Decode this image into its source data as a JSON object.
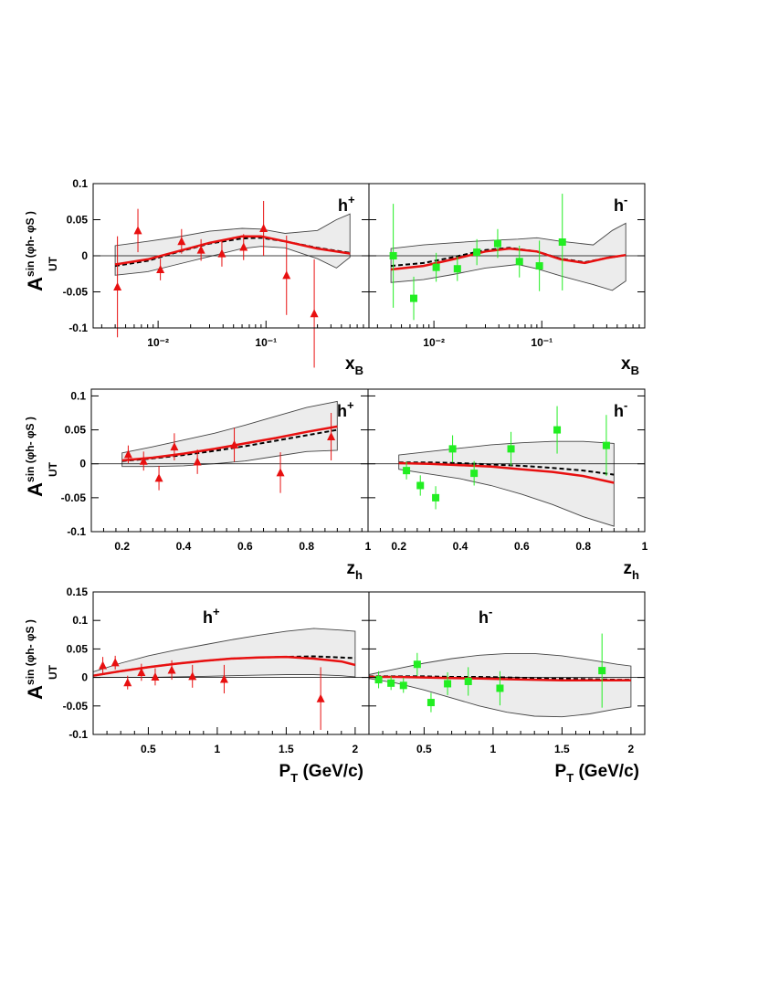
{
  "figure": {
    "ylabel": {
      "main": "A",
      "sup": "sin (φh- φS )",
      "sub": "UT"
    }
  },
  "chart_data": [
    {
      "type": "scatter",
      "row": "xB",
      "hadron": "h+",
      "xlabel": "xB",
      "xscale": "log",
      "xlim": [
        0.0025,
        0.9
      ],
      "ylim": [
        -0.1,
        0.1
      ],
      "yticks": [
        -0.1,
        -0.05,
        0,
        0.05,
        0.1
      ],
      "ytick_labels": [
        "-0.1",
        "-0.05",
        "0",
        "0.05",
        "0.1"
      ],
      "xticks": [
        0.01,
        0.1
      ],
      "xtick_labels": [
        "10⁻²",
        "10⁻¹"
      ],
      "series": [
        {
          "marker": "triangle",
          "color": "#e81010",
          "x": [
            0.0042,
            0.0065,
            0.0105,
            0.0165,
            0.025,
            0.039,
            0.062,
            0.095,
            0.155,
            0.28
          ],
          "y": [
            -0.043,
            0.035,
            -0.019,
            0.02,
            0.008,
            0.003,
            0.012,
            0.038,
            -0.027,
            -0.08
          ],
          "err": [
            0.07,
            0.03,
            0.015,
            0.017,
            0.015,
            0.018,
            0.018,
            0.038,
            0.055,
            0.075
          ]
        }
      ],
      "curves": {
        "x": [
          0.004,
          0.008,
          0.015,
          0.03,
          0.06,
          0.09,
          0.15,
          0.3,
          0.6
        ],
        "solid": [
          -0.012,
          -0.005,
          0.006,
          0.018,
          0.027,
          0.027,
          0.02,
          0.01,
          0.003
        ],
        "dashed": [
          -0.014,
          -0.007,
          0.005,
          0.017,
          0.024,
          0.025,
          0.02,
          0.011,
          0.004
        ]
      },
      "band": {
        "x": [
          0.004,
          0.008,
          0.015,
          0.03,
          0.06,
          0.09,
          0.15,
          0.3,
          0.45,
          0.6
        ],
        "upper": [
          0.014,
          0.02,
          0.026,
          0.034,
          0.038,
          0.037,
          0.031,
          0.035,
          0.05,
          0.058
        ],
        "lower": [
          -0.027,
          -0.022,
          -0.012,
          -0.001,
          0.01,
          0.013,
          0.011,
          -0.004,
          -0.017,
          -0.002
        ]
      }
    },
    {
      "type": "scatter",
      "row": "xB",
      "hadron": "h-",
      "xlabel": "xB",
      "xscale": "log",
      "xlim": [
        0.0025,
        0.9
      ],
      "ylim": [
        -0.1,
        0.1
      ],
      "yticks": [
        -0.1,
        -0.05,
        0,
        0.05,
        0.1
      ],
      "ytick_labels": [
        "",
        "",
        "",
        "",
        ""
      ],
      "xticks": [
        0.01,
        0.1
      ],
      "xtick_labels": [
        "10⁻²",
        "10⁻¹"
      ],
      "series": [
        {
          "marker": "square",
          "color": "#22ee22",
          "x": [
            0.0042,
            0.0065,
            0.0105,
            0.0165,
            0.025,
            0.039,
            0.062,
            0.095,
            0.155
          ],
          "y": [
            0.0,
            -0.059,
            -0.016,
            -0.018,
            0.005,
            0.017,
            -0.008,
            -0.014,
            0.019
          ],
          "err": [
            0.072,
            0.03,
            0.02,
            0.017,
            0.018,
            0.02,
            0.022,
            0.035,
            0.067
          ]
        }
      ],
      "curves": {
        "x": [
          0.004,
          0.008,
          0.015,
          0.03,
          0.05,
          0.09,
          0.15,
          0.25,
          0.4,
          0.6
        ],
        "solid": [
          -0.019,
          -0.014,
          -0.005,
          0.006,
          0.01,
          0.006,
          -0.005,
          -0.01,
          -0.003,
          0.001
        ],
        "dashed": [
          -0.014,
          -0.01,
          -0.002,
          0.008,
          0.011,
          0.006,
          -0.004,
          -0.009,
          -0.003,
          0.001
        ]
      },
      "band": {
        "x": [
          0.004,
          0.008,
          0.015,
          0.03,
          0.06,
          0.09,
          0.15,
          0.3,
          0.45,
          0.6
        ],
        "upper": [
          0.01,
          0.015,
          0.018,
          0.021,
          0.023,
          0.025,
          0.02,
          0.015,
          0.035,
          0.045
        ],
        "lower": [
          -0.037,
          -0.033,
          -0.026,
          -0.017,
          -0.012,
          -0.018,
          -0.028,
          -0.04,
          -0.048,
          -0.035
        ]
      }
    },
    {
      "type": "scatter",
      "row": "zh",
      "hadron": "h+",
      "xlabel": "zh",
      "xscale": "linear",
      "xlim": [
        0.1,
        1.0
      ],
      "ylim": [
        -0.1,
        0.11
      ],
      "yticks": [
        -0.1,
        -0.05,
        0,
        0.05,
        0.1
      ],
      "ytick_labels": [
        "-0.1",
        "-0.05",
        "0",
        "0.05",
        "0.1"
      ],
      "xticks": [
        0.2,
        0.4,
        0.6,
        0.8,
        1.0
      ],
      "xtick_labels": [
        "0.2",
        "0.4",
        "0.6",
        "0.8",
        "1"
      ],
      "series": [
        {
          "marker": "triangle",
          "color": "#e81010",
          "x": [
            0.22,
            0.27,
            0.32,
            0.37,
            0.445,
            0.565,
            0.715,
            0.88
          ],
          "y": [
            0.014,
            0.004,
            -0.021,
            0.025,
            0.003,
            0.028,
            -0.013,
            0.04
          ],
          "err": [
            0.013,
            0.014,
            0.018,
            0.02,
            0.018,
            0.025,
            0.03,
            0.035
          ]
        }
      ],
      "curves": {
        "x": [
          0.2,
          0.3,
          0.4,
          0.5,
          0.6,
          0.7,
          0.8,
          0.9
        ],
        "solid": [
          0.005,
          0.009,
          0.015,
          0.022,
          0.03,
          0.038,
          0.047,
          0.055
        ],
        "dashed": [
          0.004,
          0.008,
          0.013,
          0.019,
          0.026,
          0.034,
          0.042,
          0.05
        ]
      },
      "band": {
        "x": [
          0.2,
          0.3,
          0.4,
          0.5,
          0.6,
          0.7,
          0.8,
          0.9
        ],
        "upper": [
          0.016,
          0.025,
          0.035,
          0.045,
          0.057,
          0.07,
          0.083,
          0.092
        ],
        "lower": [
          -0.004,
          -0.004,
          -0.003,
          0.0,
          0.004,
          0.011,
          0.018,
          0.02
        ]
      }
    },
    {
      "type": "scatter",
      "row": "zh",
      "hadron": "h-",
      "xlabel": "zh",
      "xscale": "linear",
      "xlim": [
        0.1,
        1.0
      ],
      "ylim": [
        -0.1,
        0.11
      ],
      "yticks": [
        -0.1,
        -0.05,
        0,
        0.05,
        0.1
      ],
      "ytick_labels": [
        "",
        "",
        "",
        "",
        ""
      ],
      "xticks": [
        0.2,
        0.4,
        0.6,
        0.8,
        1.0
      ],
      "xtick_labels": [
        "0.2",
        "0.4",
        "0.6",
        "0.8",
        "1"
      ],
      "series": [
        {
          "marker": "square",
          "color": "#22ee22",
          "x": [
            0.225,
            0.27,
            0.32,
            0.375,
            0.445,
            0.565,
            0.715,
            0.875
          ],
          "y": [
            -0.01,
            -0.032,
            -0.05,
            0.022,
            -0.014,
            0.022,
            0.05,
            0.027
          ],
          "err": [
            0.013,
            0.015,
            0.017,
            0.02,
            0.018,
            0.025,
            0.035,
            0.045
          ]
        }
      ],
      "curves": {
        "x": [
          0.2,
          0.3,
          0.4,
          0.5,
          0.6,
          0.7,
          0.8,
          0.9
        ],
        "solid": [
          0.001,
          0.0,
          -0.002,
          -0.004,
          -0.008,
          -0.012,
          -0.018,
          -0.028
        ],
        "dashed": [
          0.002,
          0.002,
          0.001,
          -0.001,
          -0.003,
          -0.006,
          -0.01,
          -0.016
        ]
      },
      "band": {
        "x": [
          0.2,
          0.3,
          0.4,
          0.5,
          0.6,
          0.7,
          0.8,
          0.9
        ],
        "upper": [
          0.013,
          0.018,
          0.023,
          0.028,
          0.031,
          0.033,
          0.033,
          0.03
        ],
        "lower": [
          -0.008,
          -0.015,
          -0.022,
          -0.032,
          -0.045,
          -0.06,
          -0.078,
          -0.092
        ]
      }
    },
    {
      "type": "scatter",
      "row": "PT",
      "hadron": "h+",
      "xlabel": "PT (GeV/c)",
      "xscale": "linear",
      "xlim": [
        0.1,
        2.1
      ],
      "ylim": [
        -0.1,
        0.15
      ],
      "yticks": [
        -0.1,
        -0.05,
        0,
        0.05,
        0.1,
        0.15
      ],
      "ytick_labels": [
        "-0.1",
        "-0.05",
        "0",
        "0.05",
        "0.1",
        "0.15"
      ],
      "xticks": [
        0.5,
        1.0,
        1.5,
        2.0
      ],
      "xtick_labels": [
        "0.5",
        "1",
        "1.5",
        "2"
      ],
      "series": [
        {
          "marker": "triangle",
          "color": "#e81010",
          "x": [
            0.17,
            0.26,
            0.35,
            0.45,
            0.55,
            0.67,
            0.82,
            1.05,
            1.75
          ],
          "y": [
            0.021,
            0.026,
            -0.009,
            0.009,
            0.001,
            0.013,
            0.002,
            -0.003,
            -0.037
          ],
          "err": [
            0.015,
            0.012,
            0.012,
            0.015,
            0.015,
            0.017,
            0.02,
            0.025,
            0.055
          ]
        }
      ],
      "curves": {
        "x": [
          0.1,
          0.3,
          0.5,
          0.7,
          0.9,
          1.1,
          1.3,
          1.5,
          1.7,
          1.9,
          2.0
        ],
        "solid": [
          0.003,
          0.011,
          0.018,
          0.024,
          0.029,
          0.033,
          0.035,
          0.036,
          0.033,
          0.028,
          0.022
        ],
        "dashed": [
          0.003,
          0.011,
          0.018,
          0.024,
          0.029,
          0.033,
          0.035,
          0.036,
          0.037,
          0.035,
          0.034
        ]
      },
      "band": {
        "x": [
          0.1,
          0.3,
          0.5,
          0.7,
          0.9,
          1.1,
          1.3,
          1.5,
          1.7,
          1.9,
          2.0
        ],
        "upper": [
          0.01,
          0.025,
          0.038,
          0.048,
          0.057,
          0.066,
          0.074,
          0.081,
          0.086,
          0.083,
          0.081
        ],
        "lower": [
          0.0,
          0.0,
          0.0,
          0.001,
          0.002,
          0.003,
          0.004,
          0.005,
          0.005,
          0.003,
          0.001
        ]
      }
    },
    {
      "type": "scatter",
      "row": "PT",
      "hadron": "h-",
      "xlabel": "PT (GeV/c)",
      "xscale": "linear",
      "xlim": [
        0.1,
        2.1
      ],
      "ylim": [
        -0.1,
        0.15
      ],
      "yticks": [
        -0.1,
        -0.05,
        0,
        0.05,
        0.1,
        0.15
      ],
      "ytick_labels": [
        "",
        "",
        "",
        "",
        "",
        ""
      ],
      "xticks": [
        0.5,
        1.0,
        1.5,
        2.0
      ],
      "xtick_labels": [
        "0.5",
        "1",
        "1.5",
        "2"
      ],
      "series": [
        {
          "marker": "square",
          "color": "#22ee22",
          "x": [
            0.17,
            0.26,
            0.35,
            0.45,
            0.55,
            0.67,
            0.82,
            1.05,
            1.79
          ],
          "y": [
            -0.004,
            -0.01,
            -0.014,
            0.023,
            -0.044,
            -0.011,
            -0.007,
            -0.019,
            0.012
          ],
          "err": [
            0.015,
            0.012,
            0.013,
            0.02,
            0.017,
            0.02,
            0.025,
            0.03,
            0.065
          ]
        }
      ],
      "curves": {
        "x": [
          0.1,
          0.3,
          0.5,
          0.7,
          0.9,
          1.1,
          1.3,
          1.5,
          1.7,
          1.9,
          2.0
        ],
        "solid": [
          0.001,
          0.001,
          0.0,
          -0.001,
          -0.002,
          -0.003,
          -0.004,
          -0.005,
          -0.005,
          -0.005,
          -0.005
        ],
        "dashed": [
          0.002,
          0.002,
          0.002,
          0.001,
          0.001,
          0.0,
          -0.001,
          -0.002,
          -0.003,
          -0.004,
          -0.004
        ]
      },
      "band": {
        "x": [
          0.1,
          0.3,
          0.5,
          0.7,
          0.9,
          1.1,
          1.3,
          1.5,
          1.7,
          1.9,
          2.0
        ],
        "upper": [
          0.005,
          0.015,
          0.025,
          0.033,
          0.039,
          0.042,
          0.042,
          0.038,
          0.031,
          0.023,
          0.02
        ],
        "lower": [
          -0.002,
          -0.01,
          -0.022,
          -0.036,
          -0.05,
          -0.061,
          -0.068,
          -0.069,
          -0.064,
          -0.055,
          -0.052
        ]
      }
    }
  ]
}
